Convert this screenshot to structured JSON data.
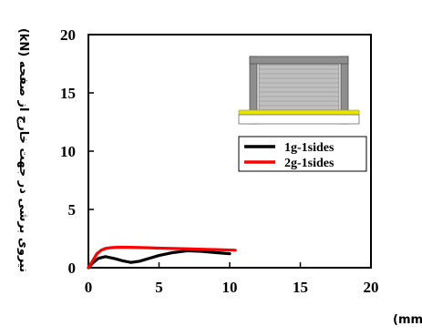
{
  "chart_data": {
    "type": "line",
    "xlabel": "متوسط جابه‌جایی میان‌قاب در جهت خارج از صفحه (mm)",
    "ylabel": "نیروی برشی در جهت خارج از صفحه (kN)",
    "xlim": [
      0,
      20
    ],
    "ylim": [
      0,
      20
    ],
    "xticks": [
      "0",
      "5",
      "10",
      "15",
      "20"
    ],
    "yticks": [
      "0",
      "5",
      "10",
      "15",
      "20"
    ],
    "grid": false,
    "legend_position": "right",
    "series": [
      {
        "name": "1g-1sides",
        "color": "#000000",
        "x": [
          0,
          0.3,
          0.7,
          1.2,
          1.8,
          2.4,
          3.0,
          3.6,
          4.3,
          5.0,
          6.0,
          7.0,
          8.0,
          9.0,
          10.0
        ],
        "y": [
          0,
          0.4,
          0.8,
          0.95,
          0.8,
          0.6,
          0.45,
          0.55,
          0.8,
          1.05,
          1.3,
          1.45,
          1.4,
          1.3,
          1.2
        ]
      },
      {
        "name": "2g-1sides",
        "color": "#ff0000",
        "x": [
          0,
          0.3,
          0.6,
          0.9,
          1.2,
          1.6,
          2.2,
          3.0,
          4.0,
          5.0,
          6.0,
          7.0,
          8.0,
          9.0,
          10.0,
          10.4
        ],
        "y": [
          0,
          0.6,
          1.2,
          1.5,
          1.65,
          1.72,
          1.76,
          1.75,
          1.72,
          1.68,
          1.65,
          1.62,
          1.58,
          1.55,
          1.52,
          1.5
        ]
      }
    ]
  },
  "colors": {
    "axis": "#000000",
    "inset_frame": "#5a5a5a",
    "inset_fill": "#c9c9c9",
    "inset_strip": "#e6e600"
  }
}
